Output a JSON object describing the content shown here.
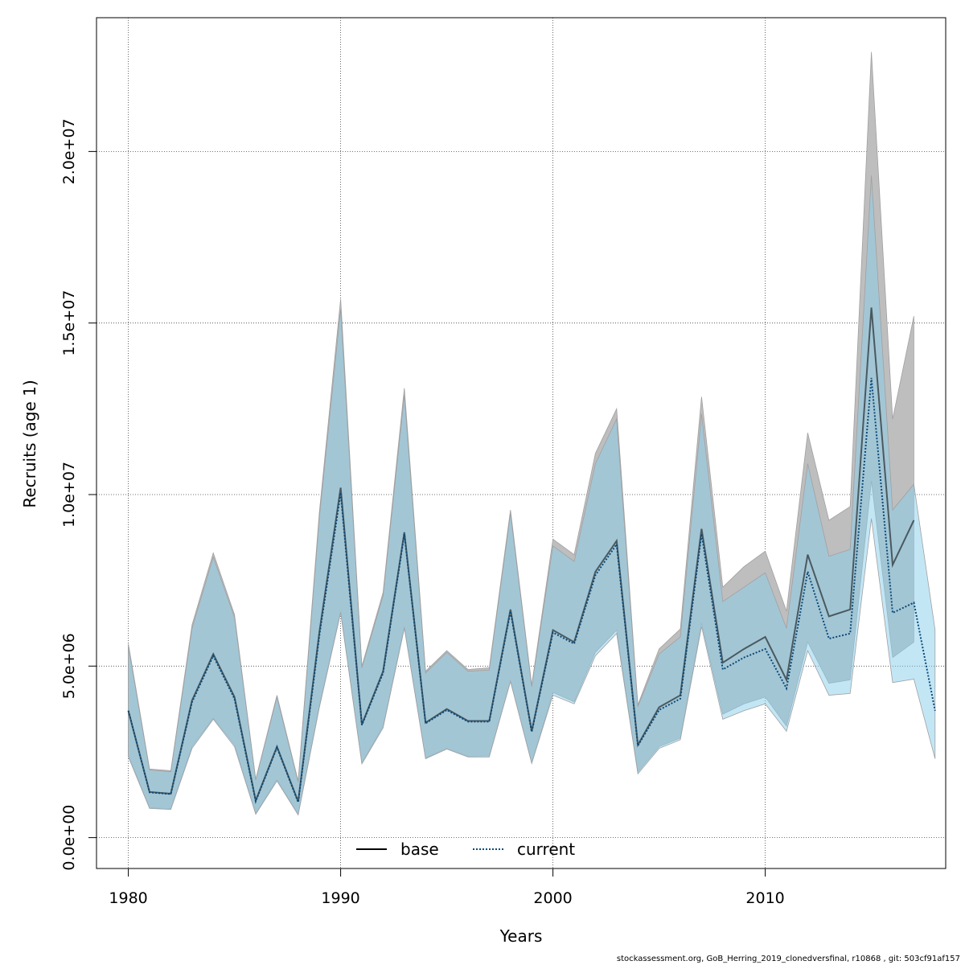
{
  "chart_data": {
    "type": "line",
    "xlabel": "Years",
    "ylabel": "Recruits (age 1)",
    "xlim": [
      1978.5,
      2018.5
    ],
    "ylim": [
      -900000,
      23900000
    ],
    "x_ticks": [
      1980,
      1990,
      2000,
      2010
    ],
    "x_tick_labels": [
      "1980",
      "1990",
      "2000",
      "2010"
    ],
    "y_ticks": [
      0,
      5000000,
      10000000,
      15000000,
      20000000
    ],
    "y_tick_labels": [
      "0.0e+00",
      "5.0e+06",
      "1.0e+07",
      "1.5e+07",
      "2.0e+07"
    ],
    "grid": true,
    "legend_position": "bottom-center",
    "colors": {
      "base_band": "#bebebe",
      "current_band": "#87ceeb",
      "base_line": "#000000",
      "current_line": "#0a4a78"
    },
    "series": [
      {
        "name": "base",
        "style": "solid",
        "x": [
          1980,
          1981,
          1982,
          1983,
          1984,
          1985,
          1986,
          1987,
          1988,
          1989,
          1990,
          1991,
          1992,
          1993,
          1994,
          1995,
          1996,
          1997,
          1998,
          1999,
          2000,
          2001,
          2002,
          2003,
          2004,
          2005,
          2006,
          2007,
          2008,
          2009,
          2010,
          2011,
          2012,
          2013,
          2014,
          2015,
          2016,
          2017
        ],
        "values": [
          3700000,
          1330000,
          1280000,
          4000000,
          5350000,
          4100000,
          1080000,
          2650000,
          1050000,
          6000000,
          10200000,
          3300000,
          4850000,
          8900000,
          3350000,
          3750000,
          3400000,
          3400000,
          6650000,
          3100000,
          6050000,
          5700000,
          7750000,
          8650000,
          2700000,
          3800000,
          4150000,
          9000000,
          5100000,
          5500000,
          5850000,
          4600000,
          8250000,
          6450000,
          6650000,
          15450000,
          7950000,
          9250000
        ],
        "lower": [
          2400000,
          870000,
          840000,
          2650000,
          3480000,
          2700000,
          700000,
          1680000,
          680000,
          3850000,
          6600000,
          2170000,
          3250000,
          6150000,
          2320000,
          2600000,
          2370000,
          2380000,
          4570000,
          2180000,
          4230000,
          3960000,
          5400000,
          6050000,
          1910000,
          2650000,
          2900000,
          6250000,
          3600000,
          3900000,
          4100000,
          3250000,
          5700000,
          4500000,
          4600000,
          10400000,
          5250000,
          5700000
        ],
        "upper": [
          5650000,
          2000000,
          1950000,
          6200000,
          8300000,
          6500000,
          1700000,
          4150000,
          1650000,
          9500000,
          15700000,
          5000000,
          7150000,
          13100000,
          4850000,
          5450000,
          4900000,
          4950000,
          9550000,
          4450000,
          8700000,
          8250000,
          11200000,
          12500000,
          3870000,
          5500000,
          6080000,
          12850000,
          7300000,
          7900000,
          8350000,
          6600000,
          11800000,
          9250000,
          9650000,
          22900000,
          12200000,
          15200000
        ]
      },
      {
        "name": "current",
        "style": "dotted",
        "x": [
          1980,
          1981,
          1982,
          1983,
          1984,
          1985,
          1986,
          1987,
          1988,
          1989,
          1990,
          1991,
          1992,
          1993,
          1994,
          1995,
          1996,
          1997,
          1998,
          1999,
          2000,
          2001,
          2002,
          2003,
          2004,
          2005,
          2006,
          2007,
          2008,
          2009,
          2010,
          2011,
          2012,
          2013,
          2014,
          2015,
          2016,
          2017,
          2018
        ],
        "values": [
          3700000,
          1320000,
          1270000,
          3950000,
          5300000,
          4050000,
          1060000,
          2630000,
          1030000,
          5900000,
          10050000,
          3280000,
          4800000,
          8850000,
          3330000,
          3720000,
          3380000,
          3380000,
          6600000,
          3080000,
          5980000,
          5650000,
          7650000,
          8550000,
          2680000,
          3720000,
          4050000,
          8850000,
          4900000,
          5250000,
          5500000,
          4350000,
          7750000,
          5800000,
          5950000,
          13400000,
          6550000,
          6850000,
          3700000
        ],
        "lower": [
          2350000,
          850000,
          820000,
          2600000,
          3450000,
          2650000,
          680000,
          1650000,
          660000,
          3800000,
          6550000,
          2150000,
          3200000,
          6100000,
          2300000,
          2580000,
          2350000,
          2350000,
          4550000,
          2160000,
          4150000,
          3900000,
          5300000,
          5950000,
          1860000,
          2600000,
          2850000,
          6150000,
          3450000,
          3700000,
          3900000,
          3100000,
          5450000,
          4150000,
          4200000,
          9300000,
          4520000,
          4620000,
          2300000
        ],
        "upper": [
          5580000,
          1970000,
          1920000,
          6100000,
          8180000,
          6420000,
          1680000,
          4100000,
          1620000,
          9350000,
          15400000,
          4950000,
          7050000,
          12900000,
          4800000,
          5400000,
          4850000,
          4880000,
          9450000,
          4400000,
          8500000,
          8050000,
          10900000,
          12200000,
          3820000,
          5350000,
          5850000,
          12350000,
          6880000,
          7300000,
          7720000,
          6100000,
          10900000,
          8200000,
          8400000,
          19300000,
          9550000,
          10300000,
          6050000
        ]
      }
    ]
  },
  "footer": {
    "text": "stockassessment.org, GoB_Herring_2019_clonedversfinal, r10868 , git: 503cf91af157"
  }
}
